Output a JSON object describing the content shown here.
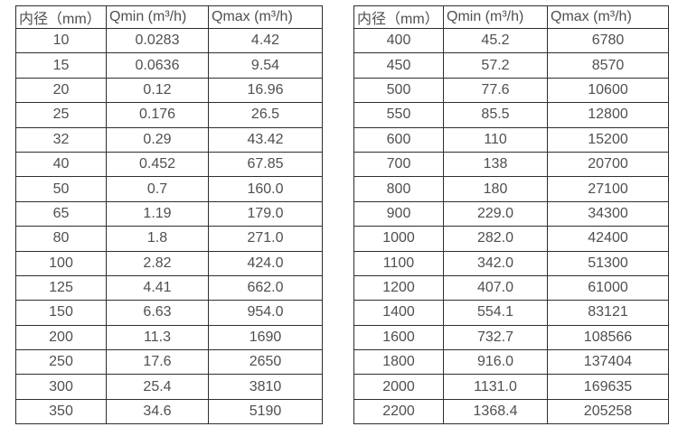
{
  "tables": [
    {
      "name": "small-diameters",
      "headers": [
        "内径（mm）",
        "Qmin (m³/h)",
        "Qmax (m³/h)"
      ],
      "rows": [
        [
          "10",
          "0.0283",
          "4.42"
        ],
        [
          "15",
          "0.0636",
          "9.54"
        ],
        [
          "20",
          "0.12",
          "16.96"
        ],
        [
          "25",
          "0.176",
          "26.5"
        ],
        [
          "32",
          "0.29",
          "43.42"
        ],
        [
          "40",
          "0.452",
          "67.85"
        ],
        [
          "50",
          "0.7",
          "160.0"
        ],
        [
          "65",
          "1.19",
          "179.0"
        ],
        [
          "80",
          "1.8",
          "271.0"
        ],
        [
          "100",
          "2.82",
          "424.0"
        ],
        [
          "125",
          "4.41",
          "662.0"
        ],
        [
          "150",
          "6.63",
          "954.0"
        ],
        [
          "200",
          "11.3",
          "1690"
        ],
        [
          "250",
          "17.6",
          "2650"
        ],
        [
          "300",
          "25.4",
          "3810"
        ],
        [
          "350",
          "34.6",
          "5190"
        ]
      ]
    },
    {
      "name": "large-diameters",
      "headers": [
        "内径（mm）",
        "Qmin (m³/h)",
        "Qmax (m³/h)"
      ],
      "rows": [
        [
          "400",
          "45.2",
          "6780"
        ],
        [
          "450",
          "57.2",
          "8570"
        ],
        [
          "500",
          "77.6",
          "10600"
        ],
        [
          "550",
          "85.5",
          "12800"
        ],
        [
          "600",
          "110",
          "15200"
        ],
        [
          "700",
          "138",
          "20700"
        ],
        [
          "800",
          "180",
          "27100"
        ],
        [
          "900",
          "229.0",
          "34300"
        ],
        [
          "1000",
          "282.0",
          "42400"
        ],
        [
          "1100",
          "342.0",
          "51300"
        ],
        [
          "1200",
          "407.0",
          "61000"
        ],
        [
          "1400",
          "554.1",
          "83121"
        ],
        [
          "1600",
          "732.7",
          "108566"
        ],
        [
          "1800",
          "916.0",
          "137404"
        ],
        [
          "2000",
          "1131.0",
          "169635"
        ],
        [
          "2200",
          "1368.4",
          "205258"
        ]
      ]
    }
  ],
  "colors": {
    "border": "#2e2e2e",
    "text": "#4f4f4f",
    "background": "#ffffff"
  }
}
